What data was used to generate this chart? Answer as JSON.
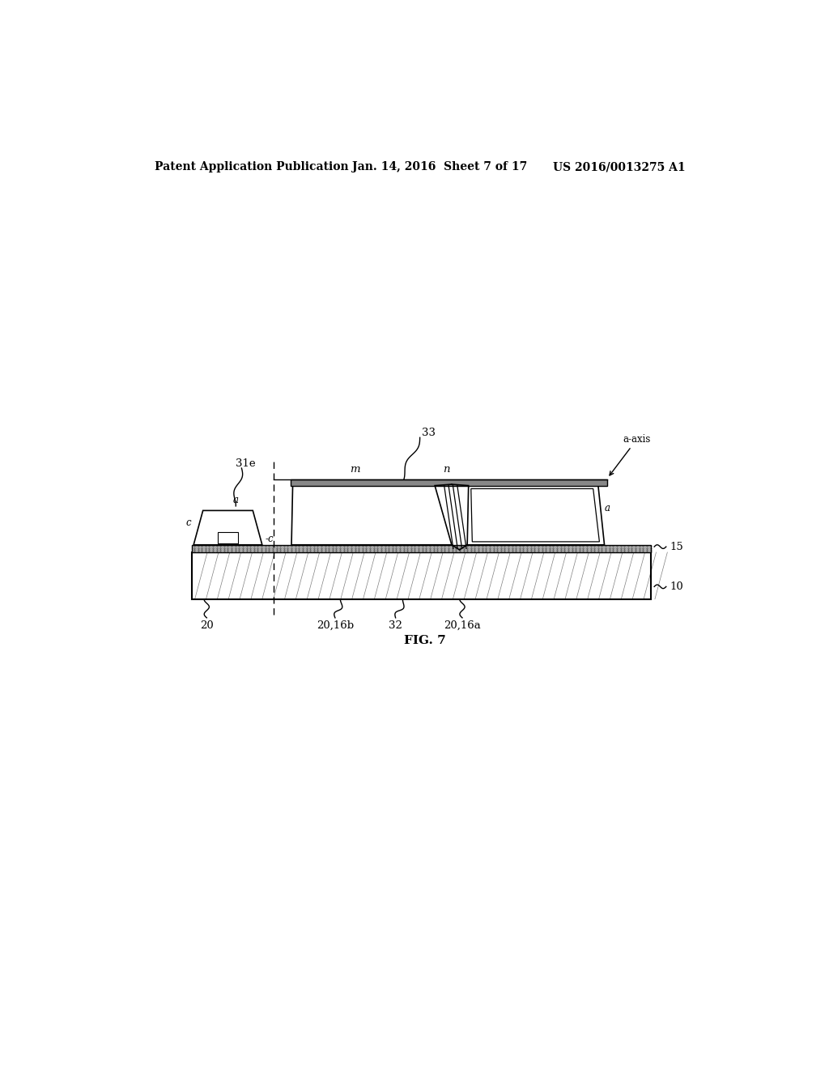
{
  "bg_color": "#ffffff",
  "header_left": "Patent Application Publication",
  "header_mid": "Jan. 14, 2016  Sheet 7 of 17",
  "header_right": "US 2016/0013275 A1",
  "fig_label": "FIG. 7"
}
